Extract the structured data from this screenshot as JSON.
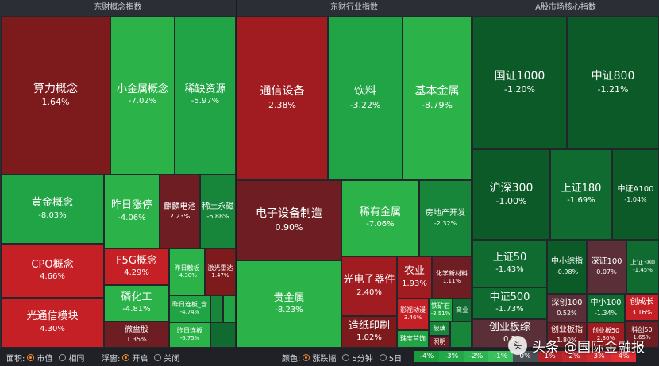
{
  "panels": [
    {
      "title": "东财概念指数",
      "tiles": [
        {
          "name": "算力概念",
          "value": "1.64%"
        },
        {
          "name": "小金属概念",
          "value": "-7.02%"
        },
        {
          "name": "稀缺资源",
          "value": "-5.97%"
        },
        {
          "name": "黄金概念",
          "value": "-8.03%"
        },
        {
          "name": "昨日涨停",
          "value": "-4.06%"
        },
        {
          "name": "麒麟电池",
          "value": "2.23%"
        },
        {
          "name": "稀土永磁",
          "value": "-6.88%"
        },
        {
          "name": "CPO概念",
          "value": "4.66%"
        },
        {
          "name": "F5G概念",
          "value": "4.29%"
        },
        {
          "name": "昨日触板",
          "value": "-4.30%"
        },
        {
          "name": "激光雷达",
          "value": "1.47%"
        },
        {
          "name": "光通信模块",
          "value": "4.30%"
        },
        {
          "name": "磷化工",
          "value": "-4.81%"
        },
        {
          "name": "昨日连板_含",
          "value": "-4.74%"
        },
        {
          "name": "微盘股",
          "value": "1.35%"
        },
        {
          "name": "昨日连板",
          "value": "-6.75%"
        }
      ]
    },
    {
      "title": "东财行业指数",
      "tiles": [
        {
          "name": "通信设备",
          "value": "2.38%"
        },
        {
          "name": "饮料",
          "value": "-3.22%"
        },
        {
          "name": "基本金属",
          "value": "-8.79%"
        },
        {
          "name": "电子设备制造",
          "value": "0.90%"
        },
        {
          "name": "稀有金属",
          "value": "-7.06%"
        },
        {
          "name": "房地产开发",
          "value": "-2.32%"
        },
        {
          "name": "贵金属",
          "value": "-8.23%"
        },
        {
          "name": "光电子器件",
          "value": "2.40%"
        },
        {
          "name": "农业",
          "value": "1.93%"
        },
        {
          "name": "化学新材料",
          "value": "1.11%"
        },
        {
          "name": "影视动漫",
          "value": "3.46%"
        },
        {
          "name": "铁矿石",
          "value": "-3.51%"
        },
        {
          "name": "商业",
          "value": ""
        },
        {
          "name": "造纸印刷",
          "value": "1.02%"
        },
        {
          "name": "玻璃",
          "value": ""
        },
        {
          "name": "珠宝首饰",
          "value": ""
        },
        {
          "name": "照明",
          "value": ""
        }
      ]
    },
    {
      "title": "A股市场核心指数",
      "tiles": [
        {
          "name": "国证1000",
          "value": "-1.20%"
        },
        {
          "name": "中证800",
          "value": "-1.21%"
        },
        {
          "name": "沪深300",
          "value": "-1.00%"
        },
        {
          "name": "上证180",
          "value": "-1.69%"
        },
        {
          "name": "中证A100",
          "value": "-1.04%"
        },
        {
          "name": "上证50",
          "value": "-1.43%"
        },
        {
          "name": "中小综指",
          "value": "-0.98%"
        },
        {
          "name": "深证100",
          "value": "0.07%"
        },
        {
          "name": "上证380",
          "value": "-1.45%"
        },
        {
          "name": "中证500",
          "value": "-1.73%"
        },
        {
          "name": "深创100",
          "value": "0.52%"
        },
        {
          "name": "中小100",
          "value": "-1.34%"
        },
        {
          "name": "创成长",
          "value": "3.16%"
        },
        {
          "name": "创业板综",
          "value": "0.2"
        },
        {
          "name": "创业板指",
          "value": "1.80%"
        },
        {
          "name": "创业板50",
          "value": "2.30%"
        },
        {
          "name": "科创50",
          "value": "1.65%"
        }
      ]
    }
  ],
  "footer": {
    "area_label": "面积:",
    "area_opt1": "市值",
    "area_opt2": "相同",
    "float_label": "浮窗:",
    "float_opt1": "开启",
    "float_opt2": "关闭",
    "color_label": "颜色:",
    "color_opt1": "涨跌幅",
    "color_opt2": "5分钟",
    "color_opt3": "5日",
    "legend": [
      "-4%",
      "-3%",
      "-2%",
      "-1%",
      "0%",
      "1%",
      "2%",
      "3%",
      "4%"
    ],
    "legend_colors": [
      "#1a9c3e",
      "#22a846",
      "#2cb451",
      "#3cc05e",
      "#4a4f57",
      "#b0232a",
      "#c1262d",
      "#d12a30",
      "#e02e34"
    ]
  },
  "watermark": {
    "platform": "头条",
    "account": "@国际金融报",
    "mark": "头"
  }
}
